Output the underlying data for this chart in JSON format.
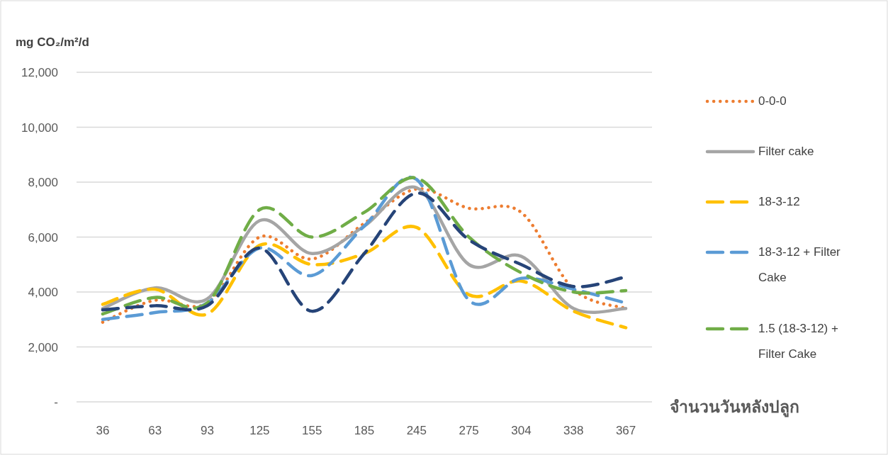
{
  "chart_data": {
    "type": "line",
    "ylabel": "mg CO₂/m²/d",
    "xlabel": "จำนวนวันหลังปลูก",
    "categories": [
      "36",
      "63",
      "93",
      "125",
      "155",
      "185",
      "245",
      "275",
      "304",
      "338",
      "367"
    ],
    "ylim": [
      0,
      12000
    ],
    "yticks": [
      {
        "value": 0,
        "label": "-"
      },
      {
        "value": 2000,
        "label": "2,000"
      },
      {
        "value": 4000,
        "label": "4,000"
      },
      {
        "value": 6000,
        "label": "6,000"
      },
      {
        "value": 8000,
        "label": "8,000"
      },
      {
        "value": 10000,
        "label": "10,000"
      },
      {
        "value": 12000,
        "label": "12,000"
      }
    ],
    "grid": "y",
    "legend": "right",
    "series": [
      {
        "name": "0-0-0",
        "color": "#ed7d31",
        "line_style": "dotted",
        "values": [
          2900,
          3700,
          3600,
          6000,
          5200,
          6500,
          7750,
          7050,
          6900,
          4100,
          3400
        ]
      },
      {
        "name": "Filter cake",
        "color": "#a5a5a5",
        "line_style": "solid",
        "values": [
          3400,
          4150,
          3750,
          6600,
          5400,
          6400,
          7800,
          5000,
          5300,
          3400,
          3400
        ]
      },
      {
        "name": "18-3-12",
        "color": "#ffc000",
        "line_style": "dashed",
        "values": [
          3550,
          4100,
          3200,
          5700,
          5000,
          5400,
          6350,
          3900,
          4400,
          3300,
          2700
        ]
      },
      {
        "name": "18-3-12 + Filter Cake",
        "color": "#5b9bd5",
        "line_style": "dashed",
        "values": [
          3000,
          3250,
          3600,
          5600,
          4600,
          6400,
          8100,
          3700,
          4500,
          4100,
          3600
        ]
      },
      {
        "name": "1.5 (18-3-12) + Filter Cake",
        "color": "#70ad47",
        "line_style": "dashed",
        "values": [
          3200,
          3800,
          3600,
          7000,
          6000,
          6900,
          8150,
          6000,
          4700,
          4000,
          4050
        ]
      },
      {
        "color": "#264478",
        "line_style": "dashed",
        "values": [
          3350,
          3500,
          3500,
          5600,
          3300,
          5400,
          7600,
          5900,
          5000,
          4200,
          4550
        ]
      }
    ]
  }
}
